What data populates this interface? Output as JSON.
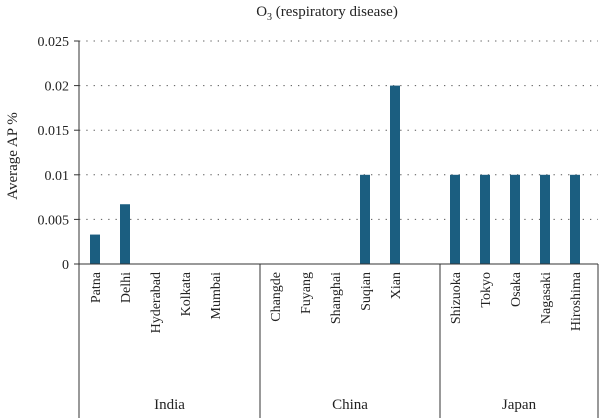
{
  "chart_data": {
    "type": "bar",
    "title_main": "O",
    "title_sub": "3",
    "title_rest": " (respiratory disease)",
    "ylabel": "Average AP %",
    "ylim": [
      0,
      0.025
    ],
    "yticks": [
      "0",
      "0.005",
      "0.01",
      "0.015",
      "0.02",
      "0.025"
    ],
    "grid": "dotted horizontal",
    "bar_color": "#1b5e80",
    "groups": [
      {
        "name": "India",
        "categories": [
          "Patna",
          "Delhi",
          "Hyderabad",
          "Kolkata",
          "Mumbai"
        ],
        "values": [
          0.0033,
          0.0067,
          0,
          0,
          0
        ]
      },
      {
        "name": "China",
        "categories": [
          "Changde",
          "Fuyang",
          "Shanghai",
          "Suqian",
          "Xian"
        ],
        "values": [
          0,
          0,
          0,
          0.01,
          0.02
        ]
      },
      {
        "name": "Japan",
        "categories": [
          "Shizuoka",
          "Tokyo",
          "Osaka",
          "Nagasaki",
          "Hiroshima"
        ],
        "values": [
          0.01,
          0.01,
          0.01,
          0.01,
          0.01
        ]
      }
    ]
  }
}
